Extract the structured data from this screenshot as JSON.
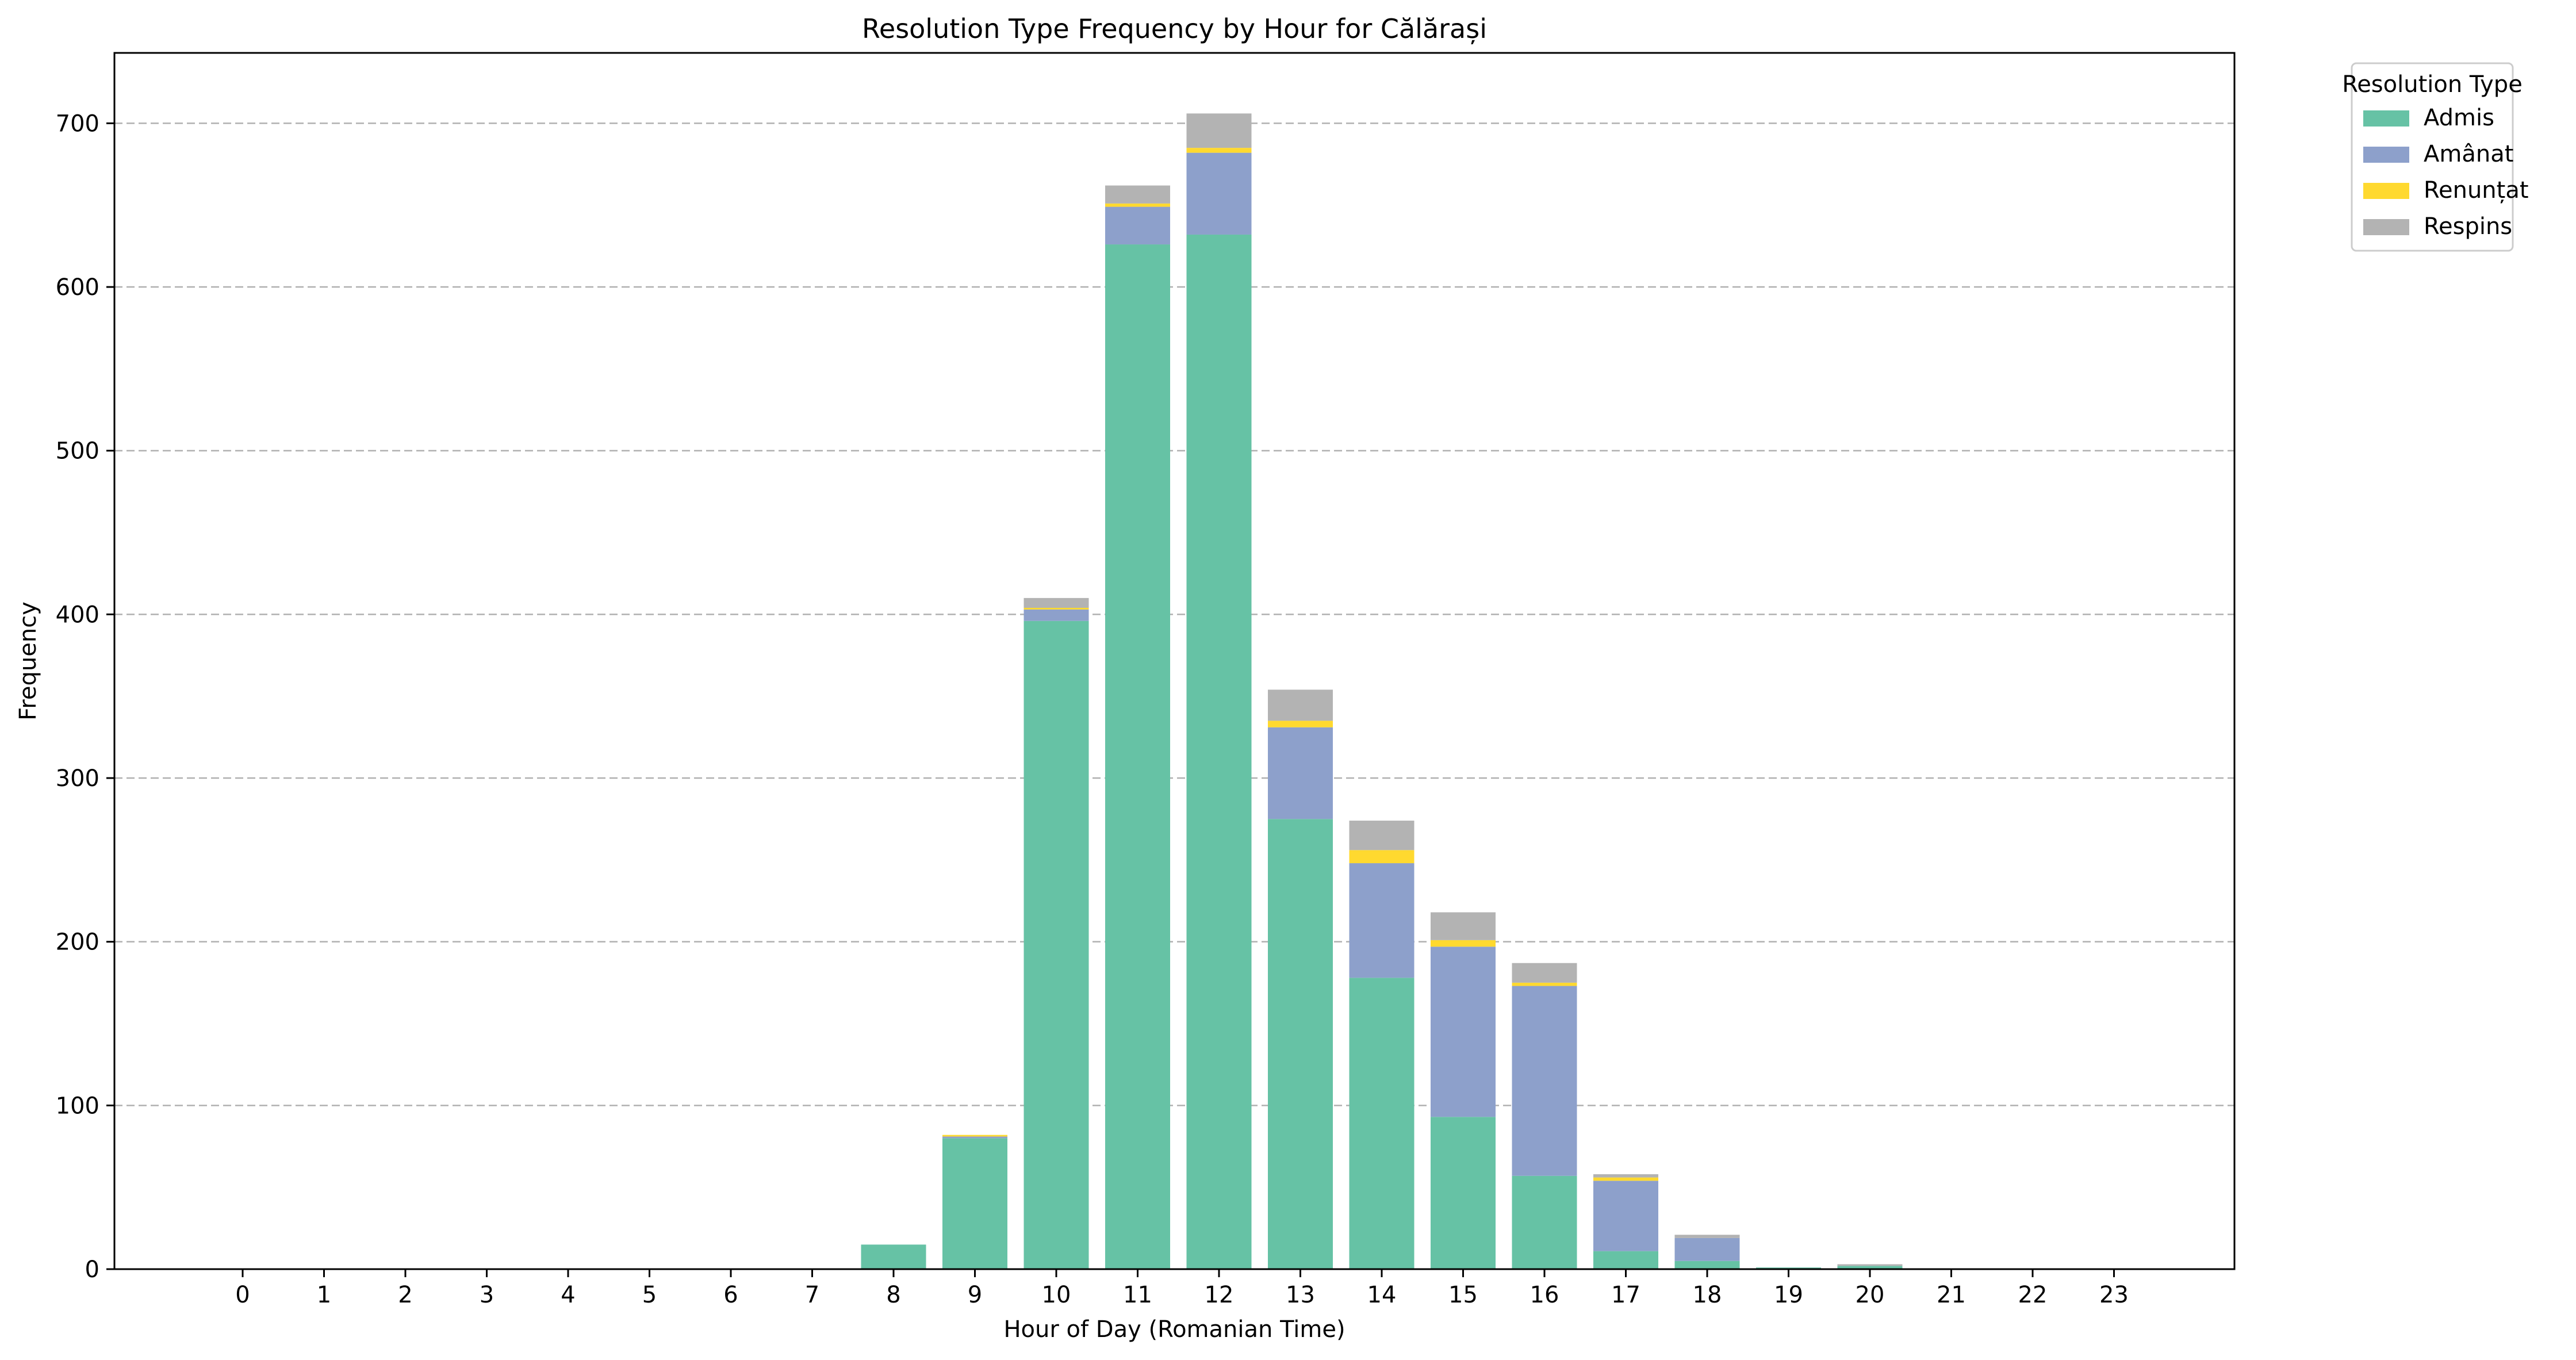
{
  "chart_data": {
    "type": "bar",
    "stacked": true,
    "title": "Resolution Type Frequency by Hour for Călărași",
    "xlabel": "Hour of Day (Romanian Time)",
    "ylabel": "Frequency",
    "categories": [
      "0",
      "1",
      "2",
      "3",
      "4",
      "5",
      "6",
      "7",
      "8",
      "9",
      "10",
      "11",
      "12",
      "13",
      "14",
      "15",
      "16",
      "17",
      "18",
      "19",
      "20",
      "21",
      "22",
      "23"
    ],
    "ylim": [
      0,
      743
    ],
    "yticks": [
      0,
      100,
      200,
      300,
      400,
      500,
      600,
      700
    ],
    "grid": "y-dashed",
    "legend": {
      "title": "Resolution Type",
      "placement": "outside-top-right"
    },
    "series": [
      {
        "name": "Admis",
        "color": "#66c2a5",
        "values": [
          0,
          0,
          0,
          0,
          0,
          0,
          0,
          0,
          15,
          80,
          396,
          626,
          632,
          275,
          178,
          93,
          57,
          11,
          5,
          1,
          2,
          0,
          0,
          0
        ]
      },
      {
        "name": "Amânat",
        "color": "#8da0cb",
        "values": [
          0,
          0,
          0,
          0,
          0,
          0,
          0,
          0,
          0,
          1,
          7,
          23,
          50,
          56,
          70,
          104,
          116,
          43,
          14,
          0,
          0,
          0,
          0,
          0
        ]
      },
      {
        "name": "Renunțat",
        "color": "#ffd92f",
        "values": [
          0,
          0,
          0,
          0,
          0,
          0,
          0,
          0,
          0,
          1,
          1,
          2,
          3,
          4,
          8,
          4,
          2,
          2,
          0,
          0,
          0,
          0,
          0,
          0
        ]
      },
      {
        "name": "Respins",
        "color": "#b3b3b3",
        "values": [
          0,
          0,
          0,
          0,
          0,
          0,
          0,
          0,
          0,
          0,
          6,
          11,
          21,
          19,
          18,
          17,
          12,
          2,
          2,
          0,
          1,
          0,
          0,
          0
        ]
      }
    ]
  }
}
